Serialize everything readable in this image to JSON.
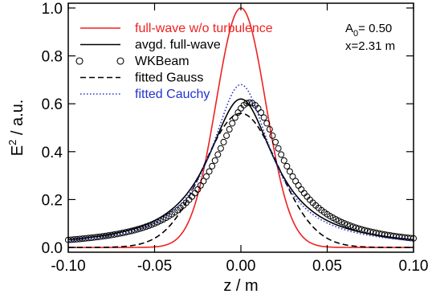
{
  "chart_data": {
    "type": "line",
    "title": "",
    "xlabel": "z / m",
    "ylabel_base": "E",
    "ylabel_sup": "2",
    "ylabel_rest": " / a.u.",
    "xlim": [
      -0.1,
      0.1
    ],
    "ylim": [
      -0.02,
      1.02
    ],
    "x_ticks": [
      -0.1,
      -0.05,
      0.0,
      0.05,
      0.1
    ],
    "x_tick_labels": [
      "-0.10",
      "-0.05",
      "0.00",
      "0.05",
      "0.10"
    ],
    "y_ticks": [
      0.0,
      0.2,
      0.4,
      0.6,
      0.8,
      1.0
    ],
    "y_tick_labels": [
      "0.0",
      "0.2",
      "0.4",
      "0.6",
      "0.8",
      "1.0"
    ],
    "grid": false,
    "legend_position": "top-left",
    "annotation": {
      "a0_base": "A",
      "a0_sub": "0",
      "a0_rest": "= 0.50",
      "x_text": "x=2.31 m"
    },
    "series": [
      {
        "name": "full-wave w/o turbulence",
        "color": "#ee2222",
        "style": "solid",
        "shape": "gauss",
        "amp": 1.0,
        "width": 0.0203,
        "offset": 0.0,
        "x": [
          -0.1,
          -0.05,
          -0.03,
          -0.02,
          -0.01,
          0.0,
          0.01,
          0.02,
          0.03,
          0.05,
          0.1
        ],
        "y": [
          0.0,
          0.05,
          0.33,
          0.61,
          0.89,
          1.0,
          0.89,
          0.61,
          0.33,
          0.05,
          0.0
        ]
      },
      {
        "name": "avgd. full-wave",
        "color": "#000000",
        "style": "solid",
        "shape": "cauchy",
        "amp": 0.62,
        "width": 0.0235,
        "offset": 0.0,
        "x": [
          -0.1,
          -0.05,
          -0.03,
          -0.02,
          -0.01,
          0.0,
          0.01,
          0.02,
          0.03,
          0.05,
          0.1
        ],
        "y": [
          0.03,
          0.12,
          0.24,
          0.36,
          0.53,
          0.62,
          0.53,
          0.36,
          0.24,
          0.12,
          0.03
        ]
      },
      {
        "name": "WKBeam",
        "color": "#000000",
        "style": "circles",
        "shape": "cauchy",
        "amp": 0.605,
        "width": 0.0245,
        "offset": 0.005,
        "x": [
          -0.1,
          -0.05,
          -0.03,
          -0.02,
          -0.01,
          0.0,
          0.01,
          0.02,
          0.03,
          0.05,
          0.1
        ],
        "y": [
          0.04,
          0.13,
          0.26,
          0.37,
          0.52,
          0.61,
          0.52,
          0.37,
          0.26,
          0.13,
          0.04
        ]
      },
      {
        "name": "fitted Gauss",
        "color": "#000000",
        "style": "dashed",
        "shape": "gauss",
        "amp": 0.56,
        "width": 0.0305,
        "offset": 0.0,
        "x": [
          -0.1,
          -0.05,
          -0.03,
          -0.02,
          -0.01,
          0.0,
          0.01,
          0.02,
          0.03,
          0.05,
          0.1
        ],
        "y": [
          0.0,
          0.14,
          0.32,
          0.45,
          0.53,
          0.56,
          0.53,
          0.45,
          0.32,
          0.14,
          0.0
        ]
      },
      {
        "name": "fitted Cauchy",
        "color": "#2233cc",
        "style": "dotted",
        "shape": "cauchy",
        "amp": 0.68,
        "width": 0.021,
        "offset": 0.0,
        "x": [
          -0.1,
          -0.05,
          -0.03,
          -0.02,
          -0.01,
          0.0,
          0.01,
          0.02,
          0.03,
          0.05,
          0.1
        ],
        "y": [
          0.03,
          0.1,
          0.22,
          0.36,
          0.55,
          0.68,
          0.55,
          0.36,
          0.22,
          0.1,
          0.03
        ]
      }
    ]
  }
}
